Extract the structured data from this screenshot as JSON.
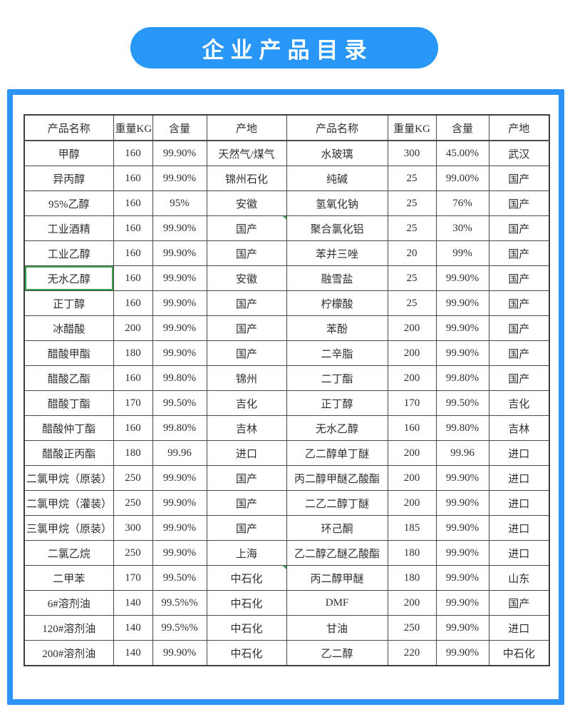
{
  "banner": {
    "title": "企业产品目录"
  },
  "colors": {
    "banner_blue": "#2997f7",
    "frame_blue": "#2e93f6",
    "table_line": "#4a4a4a",
    "selection_green": "#3a9e4d"
  },
  "catalog_table": {
    "headers": [
      "产品名称",
      "重量KG",
      "含量",
      "产地",
      "产品名称",
      "重量KG",
      "含量",
      "产地"
    ],
    "rows": [
      [
        "甲醇",
        "160",
        "99.90%",
        "天然气/煤气",
        "水玻璃",
        "300",
        "45.00%",
        "武汉"
      ],
      [
        "异丙醇",
        "160",
        "99.90%",
        "锦州石化",
        "纯碱",
        "25",
        "99.00%",
        "国产"
      ],
      [
        "95%乙醇",
        "160",
        "95%",
        "安徽",
        "氢氧化钠",
        "25",
        "76%",
        "国产"
      ],
      [
        "工业酒精",
        "160",
        "99.90%",
        "国产",
        "聚合氯化铝",
        "25",
        "30%",
        "国产"
      ],
      [
        "工业乙醇",
        "160",
        "99.90%",
        "国产",
        "苯并三唑",
        "20",
        "99%",
        "国产"
      ],
      [
        "无水乙醇",
        "160",
        "99.90%",
        "安徽",
        "融雪盐",
        "25",
        "99.90%",
        "国产"
      ],
      [
        "正丁醇",
        "160",
        "99.90%",
        "国产",
        "柠檬酸",
        "25",
        "99.90%",
        "国产"
      ],
      [
        "冰醋酸",
        "200",
        "99.90%",
        "国产",
        "苯酚",
        "200",
        "99.90%",
        "国产"
      ],
      [
        "醋酸甲酯",
        "180",
        "99.90%",
        "国产",
        "二辛脂",
        "200",
        "99.90%",
        "国产"
      ],
      [
        "醋酸乙酯",
        "160",
        "99.80%",
        "锦州",
        "二丁酯",
        "200",
        "99.80%",
        "国产"
      ],
      [
        "醋酸丁酯",
        "170",
        "99.50%",
        "吉化",
        "正丁醇",
        "170",
        "99.50%",
        "吉化"
      ],
      [
        "醋酸仲丁酯",
        "160",
        "99.80%",
        "吉林",
        "无水乙醇",
        "160",
        "99.80%",
        "吉林"
      ],
      [
        "醋酸正丙酯",
        "180",
        "99.96",
        "进口",
        "乙二醇单丁醚",
        "200",
        "99.96",
        "进口"
      ],
      [
        "二氯甲烷（原装）",
        "250",
        "99.90%",
        "国产",
        "丙二醇甲醚乙酸酯",
        "200",
        "99.90%",
        "进口"
      ],
      [
        "二氯甲烷（灌装）",
        "250",
        "99.90%",
        "国产",
        "二乙二醇丁醚",
        "200",
        "99.90%",
        "进口"
      ],
      [
        "三氯甲烷（原装）",
        "300",
        "99.90%",
        "国产",
        "环己酮",
        "185",
        "99.90%",
        "进口"
      ],
      [
        "二氯乙烷",
        "250",
        "99.90%",
        "上海",
        "乙二醇乙醚乙酸酯",
        "180",
        "99.90%",
        "进口"
      ],
      [
        "二甲苯",
        "170",
        "99.50%",
        "中石化",
        "丙二醇甲醚",
        "180",
        "99.90%",
        "山东"
      ],
      [
        "6#溶剂油",
        "140",
        "99.5%%",
        "中石化",
        "DMF",
        "200",
        "99.90%",
        "国产"
      ],
      [
        "120#溶剂油",
        "140",
        "99.5%%",
        "中石化",
        "甘油",
        "250",
        "99.90%",
        "进口"
      ],
      [
        "200#溶剂油",
        "140",
        "99.90%",
        "中石化",
        "乙二醇",
        "220",
        "99.90%",
        "中石化"
      ]
    ],
    "selected_cell": {
      "row": 5,
      "col": 0
    },
    "corner_marks": [
      {
        "row": 3,
        "col": 3
      },
      {
        "row": 17,
        "col": 3
      }
    ]
  }
}
